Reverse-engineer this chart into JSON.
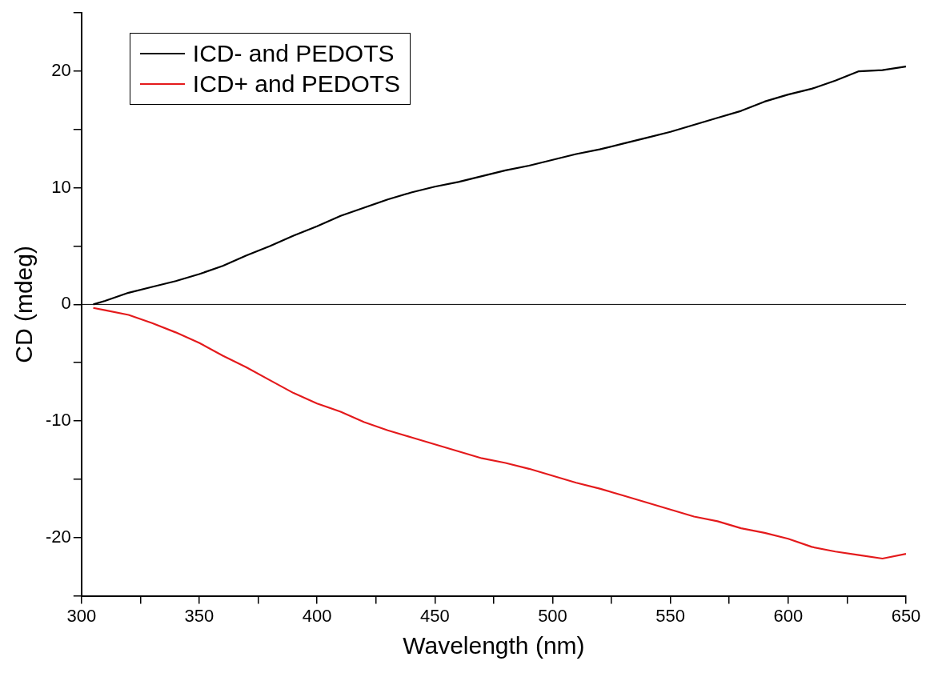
{
  "chart_data": {
    "type": "line",
    "xlabel": "Wavelength (nm)",
    "ylabel": "CD (mdeg)",
    "x": [
      305,
      310,
      320,
      330,
      340,
      350,
      360,
      370,
      380,
      390,
      400,
      410,
      420,
      430,
      440,
      450,
      460,
      470,
      480,
      490,
      500,
      510,
      520,
      530,
      540,
      550,
      560,
      570,
      580,
      590,
      600,
      610,
      620,
      630,
      640,
      650
    ],
    "series": [
      {
        "name": "ICD- and PEDOTS",
        "color": "#000000",
        "values": [
          0,
          0.3,
          1,
          1.5,
          2,
          2.6,
          3.3,
          4.2,
          5,
          5.9,
          6.7,
          7.6,
          8.3,
          9,
          9.6,
          10.1,
          10.5,
          11,
          11.5,
          11.9,
          12.4,
          12.9,
          13.3,
          13.8,
          14.3,
          14.8,
          15.4,
          16,
          16.6,
          17.4,
          18,
          18.5,
          19.2,
          20,
          20.1,
          20.4
        ]
      },
      {
        "name": "ICD+ and PEDOTS",
        "color": "#e41a1c",
        "values": [
          -0.3,
          -0.5,
          -0.9,
          -1.6,
          -2.4,
          -3.3,
          -4.4,
          -5.4,
          -6.5,
          -7.6,
          -8.5,
          -9.2,
          -10.1,
          -10.8,
          -11.4,
          -12,
          -12.6,
          -13.2,
          -13.6,
          -14.1,
          -14.7,
          -15.3,
          -15.8,
          -16.4,
          -17,
          -17.6,
          -18.2,
          -18.6,
          -19.2,
          -19.6,
          -20.1,
          -20.8,
          -21.2,
          -21.5,
          -21.8,
          -21.4
        ]
      }
    ],
    "xlim": [
      300,
      650
    ],
    "ylim": [
      -25,
      25
    ],
    "xticks": [
      300,
      {
        "value": 325,
        "label": null
      },
      350,
      {
        "value": 375,
        "label": null
      },
      400,
      {
        "value": 425,
        "label": null
      },
      450,
      {
        "value": 475,
        "label": null
      },
      500,
      {
        "value": 525,
        "label": null
      },
      550,
      {
        "value": 575,
        "label": null
      },
      600,
      {
        "value": 625,
        "label": null
      },
      650
    ],
    "yticks": [
      {
        "value": -25,
        "label": null
      },
      -20,
      {
        "value": -15,
        "label": null
      },
      -10,
      {
        "value": -5,
        "label": null
      },
      0,
      {
        "value": 5,
        "label": null
      },
      10,
      {
        "value": 15,
        "label": null
      },
      20,
      {
        "value": 25,
        "label": null
      }
    ],
    "ref_lines": [
      {
        "axis": "y",
        "value": 0,
        "color": "#000000"
      }
    ],
    "grid": false,
    "legend": "top left",
    "marker": "none",
    "line_style": "solid"
  }
}
